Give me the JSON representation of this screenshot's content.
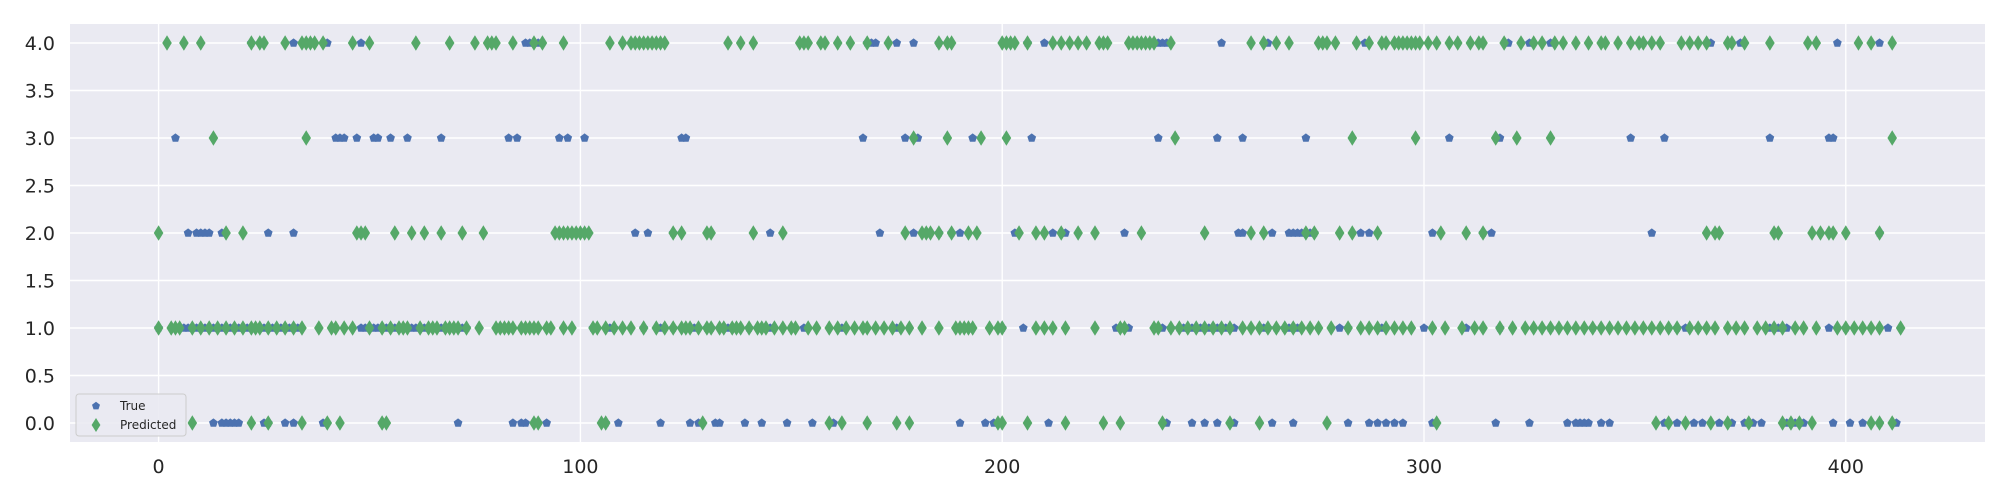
{
  "chart_data": {
    "type": "scatter",
    "title": "",
    "xlabel": "",
    "ylabel": "",
    "xlim": [
      -21,
      433
    ],
    "ylim": [
      -0.2,
      4.2
    ],
    "x_ticks": [
      0,
      100,
      200,
      300,
      400
    ],
    "y_ticks": [
      0.0,
      0.5,
      1.0,
      1.5,
      2.0,
      2.5,
      3.0,
      3.5,
      4.0
    ],
    "y_tick_labels": [
      "0.0",
      "0.5",
      "1.0",
      "1.5",
      "2.0",
      "2.5",
      "3.0",
      "3.5",
      "4.0"
    ],
    "grid": true,
    "legend_position": "lower-left",
    "background": "#eaeaf2",
    "series": [
      {
        "name": "True",
        "marker": "pentagon",
        "color": "#4c72b0",
        "points": [
          {
            "class": 4,
            "x": [
              22,
              32,
              40,
              48,
              87,
              88,
              89,
              90,
              168,
              169,
              170,
              175,
              179,
              185,
              206,
              210,
              232,
              233,
              234,
              235,
              236,
              237,
              238,
              239,
              252,
              263,
              286,
              320,
              325,
              330,
              352,
              368,
              375,
              398,
              408
            ]
          },
          {
            "class": 3,
            "x": [
              4,
              42,
              43,
              44,
              47,
              51,
              52,
              55,
              59,
              67,
              83,
              85,
              95,
              97,
              101,
              124,
              125,
              167,
              177,
              180,
              193,
              207,
              237,
              251,
              257,
              272,
              306,
              318,
              349,
              357,
              382,
              396,
              397
            ]
          },
          {
            "class": 2,
            "x": [
              7,
              9,
              10,
              11,
              12,
              15,
              26,
              32,
              99,
              113,
              116,
              122,
              145,
              171,
              179,
              185,
              188,
              190,
              203,
              212,
              215,
              229,
              256,
              257,
              264,
              268,
              269,
              270,
              271,
              272,
              273,
              274,
              285,
              287,
              302,
              314,
              316,
              354,
              408
            ]
          },
          {
            "class": 1,
            "x": [
              0,
              4,
              6,
              7,
              8,
              9,
              10,
              11,
              12,
              13,
              14,
              15,
              16,
              17,
              18,
              19,
              20,
              21,
              22,
              23,
              24,
              25,
              26,
              27,
              28,
              29,
              30,
              31,
              32,
              33,
              48,
              49,
              50,
              51,
              52,
              53,
              54,
              55,
              56,
              57,
              58,
              59,
              60,
              61,
              62,
              63,
              64,
              65,
              66,
              67,
              68,
              69,
              70,
              71,
              72,
              73,
              103,
              107,
              108,
              115,
              119,
              122,
              125,
              127,
              130,
              131,
              135,
              140,
              145,
              153,
              162,
              175,
              200,
              205,
              227,
              230,
              238,
              240,
              242,
              243,
              244,
              245,
              246,
              247,
              248,
              249,
              250,
              251,
              252,
              253,
              254,
              255,
              262,
              263,
              265,
              267,
              268,
              269,
              270,
              280,
              282,
              290,
              300,
              310,
              318,
              330,
              340,
              360,
              362,
              365,
              382,
              384,
              385,
              386,
              396,
              400,
              410
            ]
          },
          {
            "class": 0,
            "x": [
              13,
              15,
              16,
              17,
              18,
              19,
              25,
              26,
              30,
              32,
              39,
              53,
              71,
              84,
              86,
              87,
              92,
              106,
              109,
              119,
              126,
              128,
              132,
              133,
              139,
              143,
              149,
              155,
              160,
              190,
              196,
              198,
              211,
              239,
              245,
              248,
              251,
              255,
              264,
              269,
              282,
              287,
              289,
              291,
              293,
              295,
              302,
              317,
              325,
              334,
              336,
              337,
              338,
              339,
              342,
              344,
              357,
              360,
              364,
              366,
              370,
              373,
              376,
              378,
              380,
              386,
              388,
              390,
              397,
              401,
              404,
              408,
              412
            ]
          }
        ]
      },
      {
        "name": "Predicted",
        "marker": "thin-diamond",
        "color": "#55a868",
        "points": [
          {
            "class": 4,
            "x": [
              2,
              6,
              10,
              22,
              24,
              25,
              30,
              34,
              35,
              36,
              37,
              39,
              46,
              50,
              61,
              69,
              75,
              78,
              79,
              80,
              84,
              89,
              91,
              96,
              107,
              110,
              112,
              113,
              114,
              115,
              116,
              117,
              118,
              119,
              120,
              135,
              138,
              141,
              152,
              153,
              154,
              157,
              158,
              161,
              164,
              168,
              173,
              185,
              187,
              188,
              200,
              201,
              202,
              203,
              206,
              212,
              214,
              216,
              218,
              220,
              223,
              224,
              225,
              230,
              231,
              232,
              233,
              234,
              235,
              236,
              240,
              259,
              262,
              265,
              268,
              275,
              276,
              277,
              279,
              284,
              287,
              290,
              291,
              293,
              294,
              295,
              296,
              297,
              298,
              299,
              301,
              303,
              306,
              308,
              311,
              313,
              314,
              319,
              323,
              326,
              328,
              331,
              333,
              336,
              339,
              342,
              343,
              346,
              349,
              351,
              352,
              354,
              356,
              361,
              363,
              365,
              367,
              372,
              373,
              376,
              382,
              391,
              393,
              403,
              406,
              411
            ]
          },
          {
            "class": 3,
            "x": [
              13,
              35,
              179,
              187,
              195,
              201,
              241,
              283,
              298,
              317,
              322,
              330,
              411
            ]
          },
          {
            "class": 2,
            "x": [
              0,
              16,
              20,
              47,
              48,
              49,
              56,
              60,
              63,
              67,
              72,
              77,
              94,
              95,
              96,
              97,
              98,
              99,
              100,
              101,
              102,
              122,
              124,
              130,
              131,
              141,
              148,
              177,
              181,
              182,
              183,
              185,
              188,
              192,
              194,
              204,
              208,
              210,
              214,
              218,
              222,
              233,
              248,
              259,
              262,
              272,
              274,
              280,
              283,
              289,
              304,
              310,
              314,
              367,
              369,
              370,
              383,
              384,
              392,
              394,
              396,
              397,
              400,
              408
            ]
          },
          {
            "class": 1,
            "x": [
              0,
              3,
              4,
              5,
              8,
              10,
              12,
              14,
              16,
              18,
              20,
              22,
              23,
              24,
              26,
              28,
              30,
              32,
              34,
              38,
              41,
              42,
              44,
              46,
              50,
              53,
              55,
              57,
              58,
              59,
              62,
              64,
              65,
              66,
              68,
              69,
              70,
              71,
              73,
              76,
              80,
              81,
              82,
              83,
              84,
              86,
              87,
              88,
              89,
              90,
              92,
              93,
              96,
              98,
              103,
              104,
              106,
              108,
              110,
              112,
              115,
              118,
              120,
              122,
              124,
              125,
              126,
              128,
              130,
              131,
              133,
              134,
              136,
              137,
              138,
              140,
              142,
              143,
              144,
              146,
              148,
              150,
              151,
              154,
              156,
              159,
              161,
              163,
              165,
              167,
              168,
              170,
              172,
              174,
              176,
              178,
              181,
              185,
              189,
              190,
              191,
              192,
              193,
              197,
              199,
              200,
              208,
              210,
              212,
              215,
              222,
              228,
              229,
              236,
              237,
              240,
              242,
              244,
              246,
              248,
              250,
              252,
              254,
              257,
              259,
              261,
              263,
              265,
              267,
              269,
              271,
              273,
              275,
              278,
              282,
              285,
              287,
              289,
              291,
              293,
              295,
              297,
              302,
              305,
              309,
              312,
              314,
              318,
              321,
              324,
              326,
              328,
              330,
              332,
              334,
              336,
              338,
              340,
              342,
              344,
              346,
              348,
              350,
              352,
              354,
              356,
              358,
              360,
              363,
              365,
              367,
              369,
              372,
              374,
              376,
              379,
              381,
              383,
              385,
              388,
              390,
              393,
              398,
              400,
              402,
              404,
              406,
              408,
              413
            ]
          },
          {
            "class": 0,
            "x": [
              8,
              22,
              26,
              34,
              40,
              43,
              53,
              54,
              89,
              90,
              105,
              106,
              129,
              159,
              162,
              168,
              175,
              178,
              199,
              200,
              206,
              215,
              224,
              228,
              238,
              254,
              261,
              277,
              303,
              355,
              358,
              362,
              368,
              372,
              377,
              385,
              387,
              389,
              392,
              406,
              408,
              411
            ]
          }
        ]
      }
    ]
  }
}
